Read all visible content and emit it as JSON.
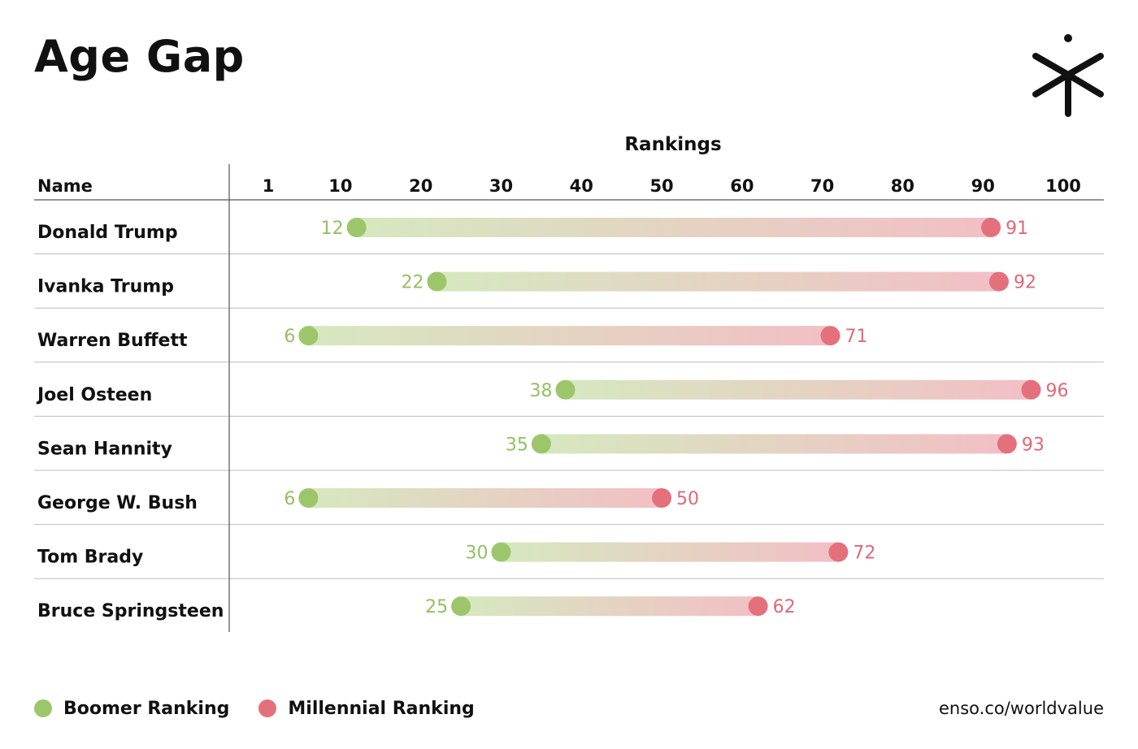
{
  "title": "Age Gap",
  "logo_icon": "enso-asterisk-icon",
  "source": "enso.co/worldvalue",
  "colors": {
    "boomer": "#9dc66b",
    "millennial": "#e4707c",
    "bar_start": "#d6e8c0",
    "bar_end": "#f2bfc5",
    "label_boomer": "#93c062",
    "label_millennial": "#e06877",
    "grid": "#bdbdbd"
  },
  "legend": [
    {
      "label": "Boomer Ranking",
      "color": "#9dc66b"
    },
    {
      "label": "Millennial Ranking",
      "color": "#e4707c"
    }
  ],
  "chart_data": {
    "type": "dumbbell",
    "title": "Age Gap",
    "xlabel": "Rankings",
    "name_header": "Name",
    "xticks": [
      1,
      10,
      20,
      30,
      40,
      50,
      60,
      70,
      80,
      90,
      100
    ],
    "xlim": [
      1,
      100
    ],
    "grid": true,
    "legend_position": "bottom-left",
    "series": [
      {
        "name": "Boomer Ranking",
        "key": "boomer"
      },
      {
        "name": "Millennial Ranking",
        "key": "millennial"
      }
    ],
    "rows": [
      {
        "name": "Donald Trump",
        "boomer": 12,
        "millennial": 91
      },
      {
        "name": "Ivanka Trump",
        "boomer": 22,
        "millennial": 92
      },
      {
        "name": "Warren Buffett",
        "boomer": 6,
        "millennial": 71
      },
      {
        "name": "Joel Osteen",
        "boomer": 38,
        "millennial": 96
      },
      {
        "name": "Sean Hannity",
        "boomer": 35,
        "millennial": 93
      },
      {
        "name": "George W. Bush",
        "boomer": 6,
        "millennial": 50
      },
      {
        "name": "Tom Brady",
        "boomer": 30,
        "millennial": 72
      },
      {
        "name": "Bruce Springsteen",
        "boomer": 25,
        "millennial": 62
      }
    ]
  }
}
